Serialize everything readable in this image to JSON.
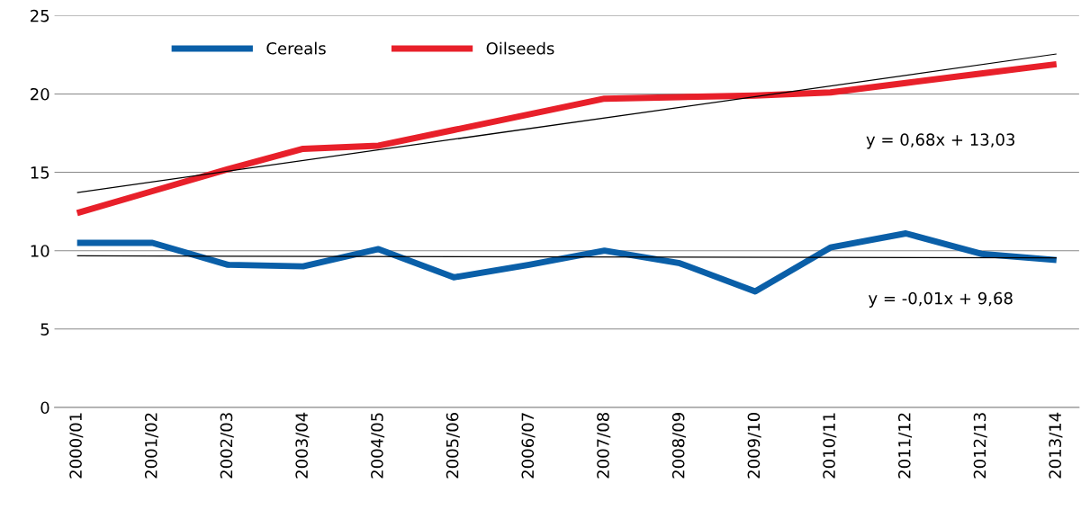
{
  "chart_data": {
    "type": "line",
    "categories": [
      "2000/01",
      "2001/02",
      "2002/03",
      "2003/04",
      "2004/05",
      "2005/06",
      "2006/07",
      "2007/08",
      "2008/09",
      "2009/10",
      "2010/11",
      "2011/12",
      "2012/13",
      "2013/14"
    ],
    "series": [
      {
        "name": "Cereals",
        "color": "#0a5fa8",
        "values": [
          10.5,
          10.5,
          9.1,
          9.0,
          10.1,
          8.3,
          9.1,
          10.0,
          9.2,
          7.4,
          10.2,
          11.1,
          9.8,
          9.4
        ]
      },
      {
        "name": "Oilseeds",
        "color": "#e8202a",
        "values": [
          12.4,
          13.8,
          15.2,
          16.5,
          16.7,
          17.7,
          18.7,
          19.7,
          19.8,
          19.9,
          20.1,
          20.7,
          21.3,
          21.9
        ]
      },
      {
        "type": "line",
        "color": "#000000",
        "x": [
          "2000/01",
          "2013/14"
        ],
        "values": [
          13.71,
          22.55
        ]
      },
      {
        "type": "line",
        "color": "#000000",
        "x": [
          "2000/01",
          "2013/14"
        ],
        "values": [
          9.67,
          9.54
        ]
      }
    ],
    "ylim": [
      0,
      25
    ],
    "yticks": [
      0,
      5,
      10,
      15,
      20,
      25
    ],
    "grid": "y",
    "legend": "top left",
    "marker": "none",
    "line_style": "solid",
    "annotations": [
      "y = 0,68x + 13,03",
      "y = -0,01x + 9,68"
    ]
  }
}
